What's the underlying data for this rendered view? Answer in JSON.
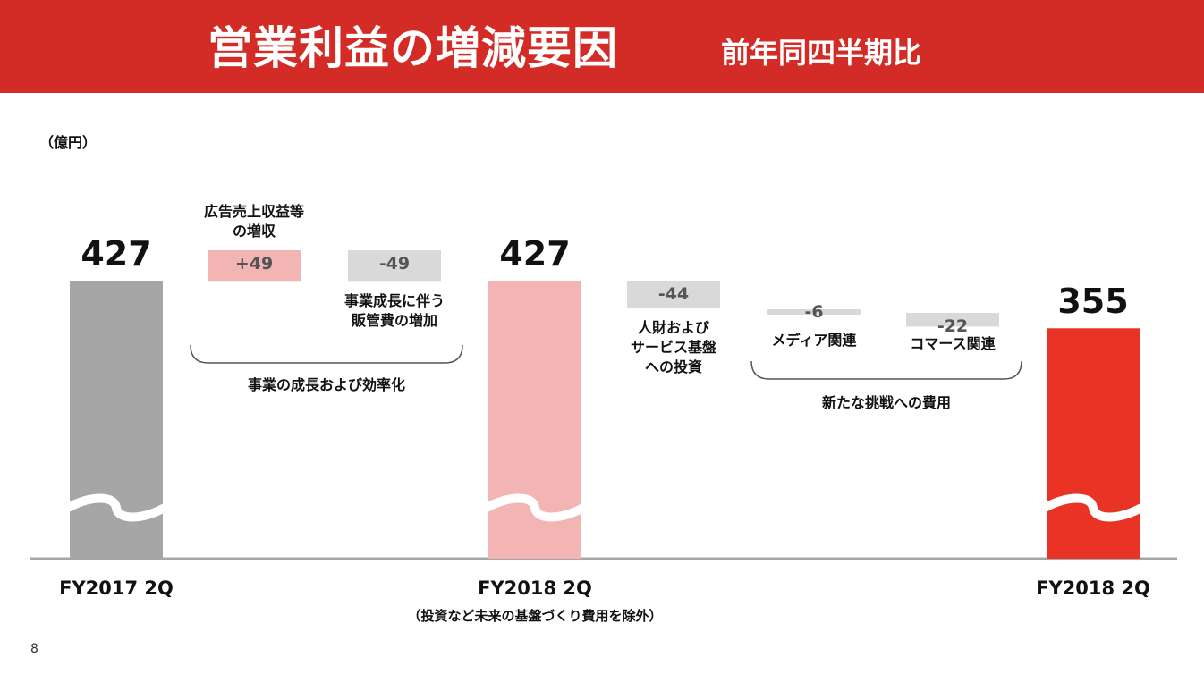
{
  "header": {
    "title": "営業利益の増減要因",
    "subtitle": "前年同四半期比"
  },
  "unit": "（億円）",
  "page_number": "8",
  "colors": {
    "header": "#d32b26",
    "bar_fy2017": "#a6a6a6",
    "bar_fy2018_adjusted": "#f2b5b4",
    "bar_fy2018": "#e83325",
    "step_increase": "#f2b5b4",
    "step_decrease": "#d9d9d9",
    "baseline": "#a6a6a6"
  },
  "chart_data": {
    "type": "bar",
    "subtype": "waterfall",
    "unit": "（億円）",
    "axis_break": true,
    "totals": [
      {
        "key": "fy2017",
        "category": "FY2017 2Q",
        "value": 427,
        "value_label": "427"
      },
      {
        "key": "fy2018_adj",
        "category": "FY2018 2Q",
        "value": 427,
        "value_label": "427",
        "note": "（投資など未来の基盤づくり費用を除外）"
      },
      {
        "key": "fy2018",
        "category": "FY2018 2Q",
        "value": 355,
        "value_label": "355"
      }
    ],
    "steps": [
      {
        "key": "ad",
        "value": 49,
        "value_label": "+49",
        "label": [
          "広告売上収益等",
          "の増収"
        ]
      },
      {
        "key": "sga",
        "value": -49,
        "value_label": "-49",
        "label": [
          "事業成長に伴う",
          "販管費の増加"
        ]
      },
      {
        "key": "hr",
        "value": -44,
        "value_label": "-44",
        "label": [
          "人財および",
          "サービス基盤",
          "への投資"
        ]
      },
      {
        "key": "media",
        "value": -6,
        "value_label": "-6",
        "label": [
          "メディア関連"
        ]
      },
      {
        "key": "commerce",
        "value": -22,
        "value_label": "-22",
        "label": [
          "コマース関連"
        ]
      }
    ],
    "groups": [
      {
        "key": "growth",
        "label": "事業の成長および効率化"
      },
      {
        "key": "new",
        "label": "新たな挑戦への費用"
      }
    ]
  }
}
